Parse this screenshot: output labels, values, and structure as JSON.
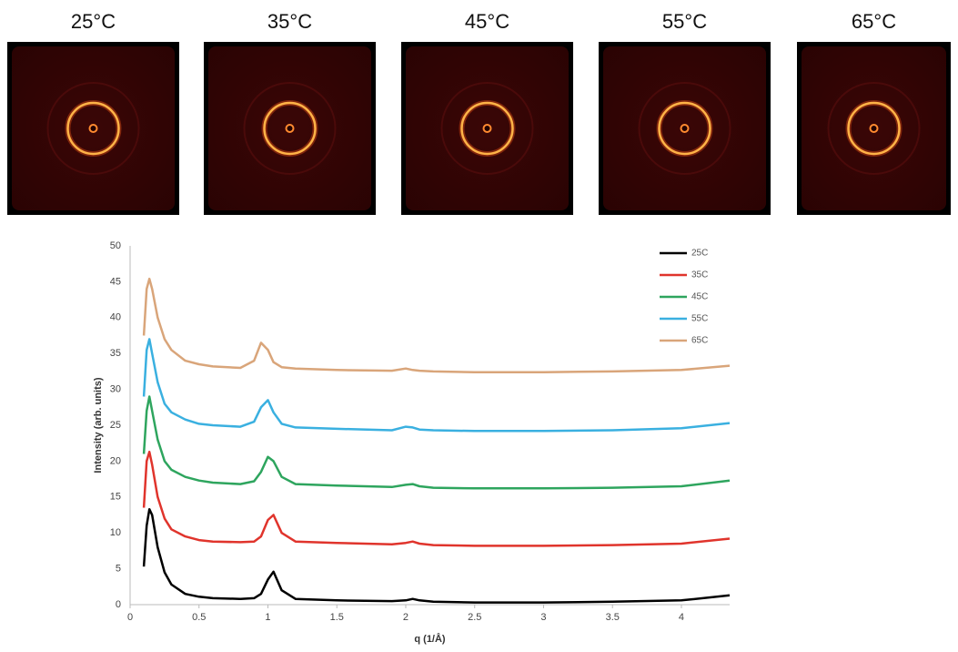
{
  "panels": [
    {
      "label": "25°C"
    },
    {
      "label": "35°C"
    },
    {
      "label": "45°C"
    },
    {
      "label": "55°C"
    },
    {
      "label": "65°C"
    }
  ],
  "chart_data": {
    "type": "line",
    "x_label": "q (1/Å)",
    "y_label": "Intensity (arb. units)",
    "x": [
      0.1,
      0.12,
      0.14,
      0.16,
      0.2,
      0.25,
      0.3,
      0.4,
      0.5,
      0.6,
      0.8,
      0.9,
      0.95,
      1.0,
      1.04,
      1.1,
      1.2,
      1.5,
      1.9,
      2.0,
      2.05,
      2.1,
      2.2,
      2.5,
      3.0,
      3.5,
      4.0,
      4.35
    ],
    "series": [
      {
        "name": "25C",
        "color": "#000000",
        "values": [
          5.3,
          11,
          13.3,
          12.5,
          8,
          4.5,
          2.8,
          1.5,
          1.1,
          0.9,
          0.8,
          0.9,
          1.5,
          3.5,
          4.6,
          2.0,
          0.8,
          0.6,
          0.5,
          0.6,
          0.8,
          0.6,
          0.4,
          0.3,
          0.3,
          0.4,
          0.6,
          1.3
        ]
      },
      {
        "name": "35C",
        "color": "#e0342c",
        "values": [
          13.5,
          20,
          21.3,
          19.5,
          15,
          12,
          10.5,
          9.5,
          9,
          8.8,
          8.7,
          8.8,
          9.5,
          11.8,
          12.5,
          10,
          8.8,
          8.6,
          8.4,
          8.6,
          8.8,
          8.5,
          8.3,
          8.2,
          8.2,
          8.3,
          8.5,
          9.2
        ]
      },
      {
        "name": "45C",
        "color": "#2ea55e",
        "values": [
          21,
          27,
          29,
          27,
          23,
          20,
          18.8,
          17.8,
          17.3,
          17,
          16.8,
          17.2,
          18.5,
          20.6,
          20,
          17.8,
          16.8,
          16.6,
          16.4,
          16.7,
          16.8,
          16.5,
          16.3,
          16.2,
          16.2,
          16.3,
          16.5,
          17.3
        ]
      },
      {
        "name": "55C",
        "color": "#3ab0e0",
        "values": [
          29,
          35.5,
          37,
          35,
          31,
          28,
          26.8,
          25.8,
          25.2,
          25,
          24.8,
          25.5,
          27.5,
          28.5,
          26.8,
          25.2,
          24.7,
          24.5,
          24.3,
          24.8,
          24.7,
          24.4,
          24.3,
          24.2,
          24.2,
          24.3,
          24.6,
          25.3
        ]
      },
      {
        "name": "65C",
        "color": "#d9a57a",
        "values": [
          37.5,
          44,
          45.4,
          44,
          40,
          37,
          35.5,
          34,
          33.5,
          33.2,
          33,
          34,
          36.5,
          35.5,
          33.8,
          33.1,
          32.9,
          32.7,
          32.6,
          32.9,
          32.7,
          32.6,
          32.5,
          32.4,
          32.4,
          32.5,
          32.7,
          33.3
        ]
      }
    ],
    "xlim": [
      0,
      4.35
    ],
    "xticks": [
      0,
      0.5,
      1,
      1.5,
      2,
      2.5,
      3,
      3.5,
      4
    ],
    "ylim": [
      0,
      50
    ],
    "yticks": [
      0,
      5,
      10,
      15,
      20,
      25,
      30,
      35,
      40,
      45,
      50
    ],
    "grid": false,
    "legend": "top-right"
  }
}
